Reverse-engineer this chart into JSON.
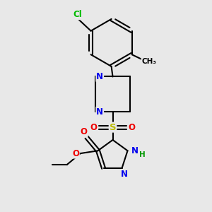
{
  "bg_color": "#e8e8e8",
  "bond_color": "#000000",
  "bond_width": 1.5,
  "atom_colors": {
    "N": "#0000ee",
    "O": "#ee0000",
    "S": "#bbbb00",
    "Cl": "#00bb00",
    "NH": "#009900",
    "C": "#000000"
  },
  "font_size": 8.5,
  "fig_size": [
    3.0,
    3.0
  ],
  "dpi": 100
}
